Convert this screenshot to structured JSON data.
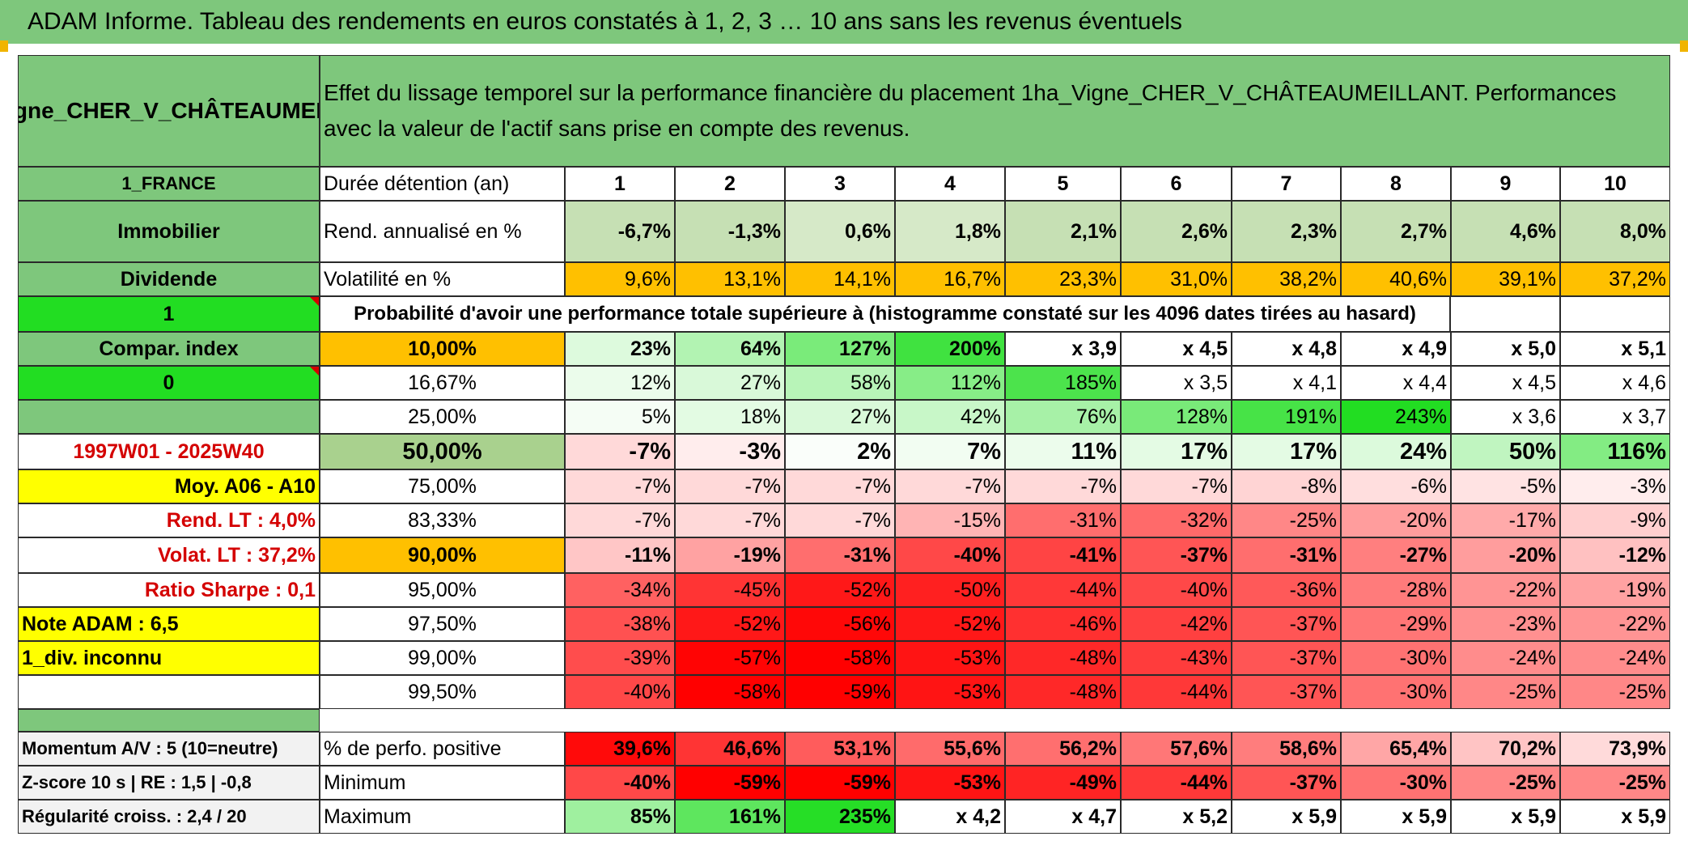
{
  "title": "ADAM Informe. Tableau des rendements en euros constatés à 1, 2, 3 … 10 ans sans les revenus éventuels",
  "asset_name": "1ha_Vigne_CHER_V_CHÂTEAUMEILLANT",
  "description": "Effet du lissage temporel sur la performance financière du placement 1ha_Vigne_CHER_V_CHÂTEAUMEILLANT. Performances avec la valeur de l'actif sans prise en compte des revenus.",
  "left": {
    "country": "1_FRANCE",
    "category": "Immobilier",
    "dividend": "Dividende",
    "flag1": "1",
    "compar": "Compar. index",
    "flag0": "0",
    "period": "1997W01 - 2025W40",
    "moy": "Moy. A06 - A10",
    "rend_lt": "Rend. LT :   4,0%",
    "volat_lt": "Volat. LT :   37,2%",
    "sharpe": "Ratio Sharpe :    0,1",
    "note": "Note ADAM : 6,5",
    "div": "1_div. inconnu",
    "momentum": "Momentum A/V : 5 (10=neutre)",
    "zscore": "Z-score 10 s | RE : 1,5 | -0,8",
    "regularite": "Régularité croiss. : 2,4 / 20"
  },
  "labels": {
    "duree": "Durée détention (an)",
    "rend": "Rend. annualisé en %",
    "vol": "Volatilité en %",
    "prob": "Probabilité d'avoir une performance totale supérieure à (histogramme constaté sur les 4096 dates tirées au hasard)",
    "pos": "% de perfo. positive",
    "min": "Minimum",
    "max": "Maximum"
  },
  "years": [
    "1",
    "2",
    "3",
    "4",
    "5",
    "6",
    "7",
    "8",
    "9",
    "10"
  ],
  "rend": [
    "-6,7%",
    "-1,3%",
    "0,6%",
    "1,8%",
    "2,1%",
    "2,6%",
    "2,3%",
    "2,7%",
    "4,6%",
    "8,0%"
  ],
  "vol": [
    "9,6%",
    "13,1%",
    "14,1%",
    "16,7%",
    "23,3%",
    "31,0%",
    "38,2%",
    "40,6%",
    "39,1%",
    "37,2%"
  ],
  "percentiles": [
    {
      "p": "10,00%",
      "v": [
        "23%",
        "64%",
        "127%",
        "200%",
        "x 3,9",
        "x 4,5",
        "x 4,8",
        "x 4,9",
        "x 5,0",
        "x 5,1"
      ]
    },
    {
      "p": "16,67%",
      "v": [
        "12%",
        "27%",
        "58%",
        "112%",
        "185%",
        "x 3,5",
        "x 4,1",
        "x 4,4",
        "x 4,5",
        "x 4,6"
      ]
    },
    {
      "p": "25,00%",
      "v": [
        "5%",
        "18%",
        "27%",
        "42%",
        "76%",
        "128%",
        "191%",
        "243%",
        "x 3,6",
        "x 3,7"
      ]
    },
    {
      "p": "50,00%",
      "v": [
        "-7%",
        "-3%",
        "2%",
        "7%",
        "11%",
        "17%",
        "17%",
        "24%",
        "50%",
        "116%"
      ]
    },
    {
      "p": "75,00%",
      "v": [
        "-7%",
        "-7%",
        "-7%",
        "-7%",
        "-7%",
        "-7%",
        "-8%",
        "-6%",
        "-5%",
        "-3%"
      ]
    },
    {
      "p": "83,33%",
      "v": [
        "-7%",
        "-7%",
        "-7%",
        "-15%",
        "-31%",
        "-32%",
        "-25%",
        "-20%",
        "-17%",
        "-9%"
      ]
    },
    {
      "p": "90,00%",
      "v": [
        "-11%",
        "-19%",
        "-31%",
        "-40%",
        "-41%",
        "-37%",
        "-31%",
        "-27%",
        "-20%",
        "-12%"
      ]
    },
    {
      "p": "95,00%",
      "v": [
        "-34%",
        "-45%",
        "-52%",
        "-50%",
        "-44%",
        "-40%",
        "-36%",
        "-28%",
        "-22%",
        "-19%"
      ]
    },
    {
      "p": "97,50%",
      "v": [
        "-38%",
        "-52%",
        "-56%",
        "-52%",
        "-46%",
        "-42%",
        "-37%",
        "-29%",
        "-23%",
        "-22%"
      ]
    },
    {
      "p": "99,00%",
      "v": [
        "-39%",
        "-57%",
        "-58%",
        "-53%",
        "-48%",
        "-43%",
        "-37%",
        "-30%",
        "-24%",
        "-24%"
      ]
    },
    {
      "p": "99,50%",
      "v": [
        "-40%",
        "-58%",
        "-59%",
        "-53%",
        "-48%",
        "-44%",
        "-37%",
        "-30%",
        "-25%",
        "-25%"
      ]
    }
  ],
  "positive": [
    "39,6%",
    "46,6%",
    "53,1%",
    "55,6%",
    "56,2%",
    "57,6%",
    "58,6%",
    "65,4%",
    "70,2%",
    "73,9%"
  ],
  "minimum": [
    "-40%",
    "-59%",
    "-59%",
    "-53%",
    "-49%",
    "-44%",
    "-37%",
    "-30%",
    "-25%",
    "-25%"
  ],
  "maximum": [
    "85%",
    "161%",
    "235%",
    "x 4,2",
    "x 4,7",
    "x 5,2",
    "x 5,9",
    "x 5,9",
    "x 5,9",
    "x 5,9"
  ],
  "colors": {
    "header_green": "#7ec77c",
    "bright_green": "#22dd22",
    "orange": "#ffc000",
    "yellow": "#ffff00",
    "light_green": "#c6e0b4",
    "red": "#ff0000",
    "alert_text": "#d40000"
  }
}
